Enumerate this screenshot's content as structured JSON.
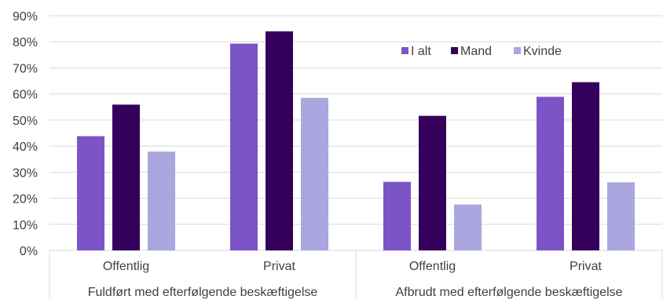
{
  "chart_data": {
    "type": "bar",
    "title": "",
    "xlabel": "",
    "ylabel": "",
    "ylim": [
      0,
      90
    ],
    "y_ticks": [
      0,
      10,
      20,
      30,
      40,
      50,
      60,
      70,
      80,
      90
    ],
    "y_tick_labels": [
      "0%",
      "10%",
      "20%",
      "30%",
      "40%",
      "50%",
      "60%",
      "70%",
      "80%",
      "90%"
    ],
    "grid": true,
    "legend_position": "top-right",
    "groups": [
      {
        "label": "Fuldført med efterfølgende beskæftigelse",
        "categories": [
          "Offentlig",
          "Privat"
        ]
      },
      {
        "label": "Afbrudt med efterfølgende beskæftigelse",
        "categories": [
          "Offentlig",
          "Privat"
        ]
      }
    ],
    "categories": [
      "Offentlig",
      "Privat",
      "Offentlig",
      "Privat"
    ],
    "series": [
      {
        "name": "I alt",
        "color": "#7b55c7",
        "values": [
          43.8,
          79.3,
          26.3,
          58.9
        ]
      },
      {
        "name": "Mand",
        "color": "#35005b",
        "values": [
          55.9,
          84.0,
          51.6,
          64.5
        ]
      },
      {
        "name": "Kvinde",
        "color": "#a9a6e0",
        "values": [
          37.9,
          58.5,
          17.6,
          26.1
        ]
      }
    ]
  }
}
